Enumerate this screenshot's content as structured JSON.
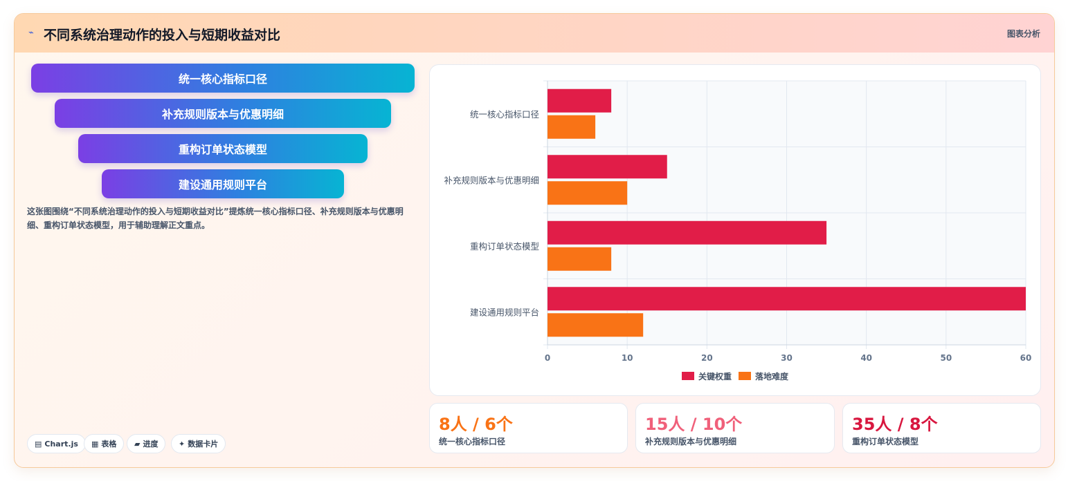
{
  "header": {
    "icon": "chart-trend-icon",
    "title": "不同系统治理动作的投入与短期收益对比",
    "tag": "图表分析"
  },
  "funnel": {
    "steps": [
      "统一核心指标口径",
      "补充规则版本与优惠明细",
      "重构订单状态模型",
      "建设通用规则平台"
    ]
  },
  "description": "这张图围绕“不同系统治理动作的投入与短期收益对比”提炼统一核心指标口径、补充规则版本与优惠明细、重构订单状态模型，用于辅助理解正文重点。",
  "chips": [
    {
      "icon": "chart-icon",
      "glyph": "▤",
      "label": "Chart.js"
    },
    {
      "icon": "table-icon",
      "glyph": "▦",
      "label": "表格"
    },
    {
      "icon": "progress-icon",
      "glyph": "▰",
      "label": "进度"
    },
    {
      "icon": "sparkle-icon",
      "glyph": "✦",
      "label": "数据卡片"
    }
  ],
  "chart_data": {
    "type": "bar",
    "orientation": "horizontal",
    "categories": [
      "统一核心指标口径",
      "补充规则版本与优惠明细",
      "重构订单状态模型",
      "建设通用规则平台"
    ],
    "series": [
      {
        "name": "关键权重",
        "color": "#e11d48",
        "values": [
          8,
          15,
          35,
          60
        ]
      },
      {
        "name": "落地难度",
        "color": "#f97316",
        "values": [
          6,
          10,
          8,
          12
        ]
      }
    ],
    "xlim": [
      0,
      60
    ],
    "xticks": [
      0,
      10,
      20,
      30,
      40,
      50,
      60
    ],
    "grid": true,
    "legend": "bottom"
  },
  "stats": [
    {
      "value": "8人 / 6个",
      "label": "统一核心指标口径",
      "color": "#f97316"
    },
    {
      "value": "15人 / 10个",
      "label": "补充规则版本与优惠明细",
      "color": "#f0607a"
    },
    {
      "value": "35人 / 8个",
      "label": "重构订单状态模型",
      "color": "#d8173f"
    }
  ]
}
